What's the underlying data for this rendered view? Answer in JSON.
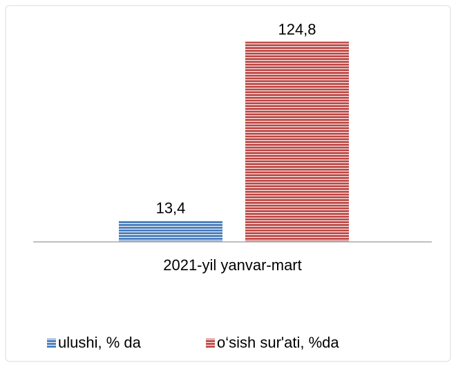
{
  "chart_data": {
    "type": "bar",
    "categories": [
      "2021-yil yanvar-mart"
    ],
    "series": [
      {
        "name": "ulushi, % da",
        "color": "#4f81bd",
        "values": [
          13.4
        ],
        "value_labels": [
          "13,4"
        ]
      },
      {
        "name": "o‘sish sur'ati, %da",
        "color": "#c0504d",
        "values": [
          124.8
        ],
        "value_labels": [
          "124,8"
        ]
      }
    ],
    "ylim": [
      0,
      140
    ],
    "legend": "bottom"
  }
}
